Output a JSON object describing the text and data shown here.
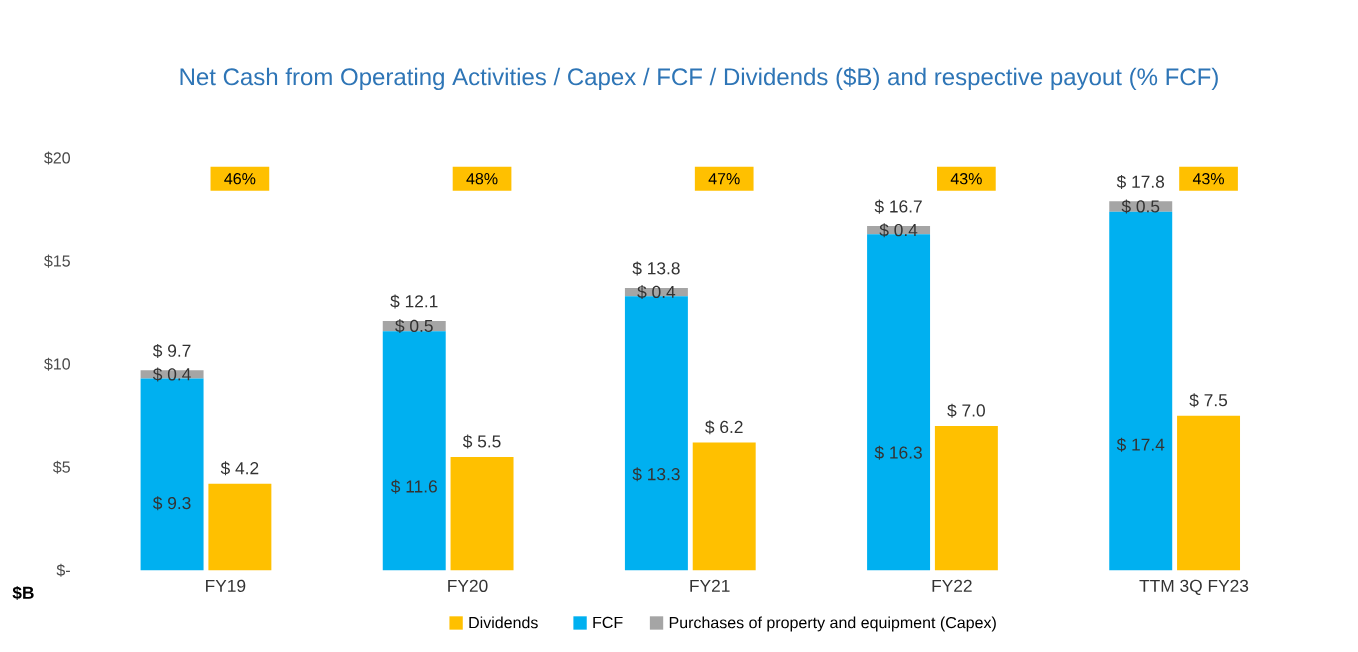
{
  "chart_data": [
    {
      "type": "bar",
      "title": "Net Cash from Operating Activities / Capex / FCF / Dividends ($B) and respective payout (% FCF)",
      "categories": [
        "FY19",
        "FY20",
        "FY21",
        "FY22",
        "TTM 3Q FY23"
      ],
      "stacked": true,
      "series": [
        {
          "name": "FCF",
          "color": "#00b0f0",
          "values": [
            9.3,
            11.6,
            13.3,
            16.3,
            17.4
          ],
          "value_labels": [
            "$ 9.3",
            "$ 11.6",
            "$ 13.3",
            "$ 16.3",
            "$ 17.4"
          ]
        },
        {
          "name": "Purchases of property and equipment (Capex)",
          "color": "#a5a5a5",
          "values": [
            0.4,
            0.5,
            0.4,
            0.4,
            0.5
          ],
          "value_labels": [
            "$ 0.4",
            "$ 0.5",
            "$ 0.4",
            "$ 0.4",
            "$ 0.5"
          ]
        }
      ],
      "totals": [
        "$ 9.7",
        "$ 12.1",
        "$ 13.8",
        "$ 16.7",
        "$ 17.8"
      ],
      "annotations": [
        "46%",
        "48%",
        "47%",
        "43%",
        "43%"
      ],
      "ylabel": "$B",
      "ylim": [
        0,
        20
      ],
      "yticks": [
        {
          "value": 0,
          "label": "$-"
        },
        {
          "value": 5,
          "label": "$5"
        },
        {
          "value": 10,
          "label": "$10"
        },
        {
          "value": 15,
          "label": "$15"
        },
        {
          "value": 20,
          "label": "$20"
        }
      ],
      "legend": "bottom"
    },
    {
      "type": "bar",
      "categories": [
        null,
        null,
        null,
        null,
        null
      ],
      "series": [
        {
          "name": "Dividends",
          "color": "#ffc000",
          "values": [
            4.2,
            5.5,
            6.2,
            7.0,
            7.5
          ],
          "value_labels": [
            "$ 4.2",
            "$ 5.5",
            "$ 6.2",
            "$ 7.0",
            "$ 7.5"
          ]
        }
      ],
      "ylim": [
        0,
        20
      ],
      "legend": "bottom"
    }
  ]
}
